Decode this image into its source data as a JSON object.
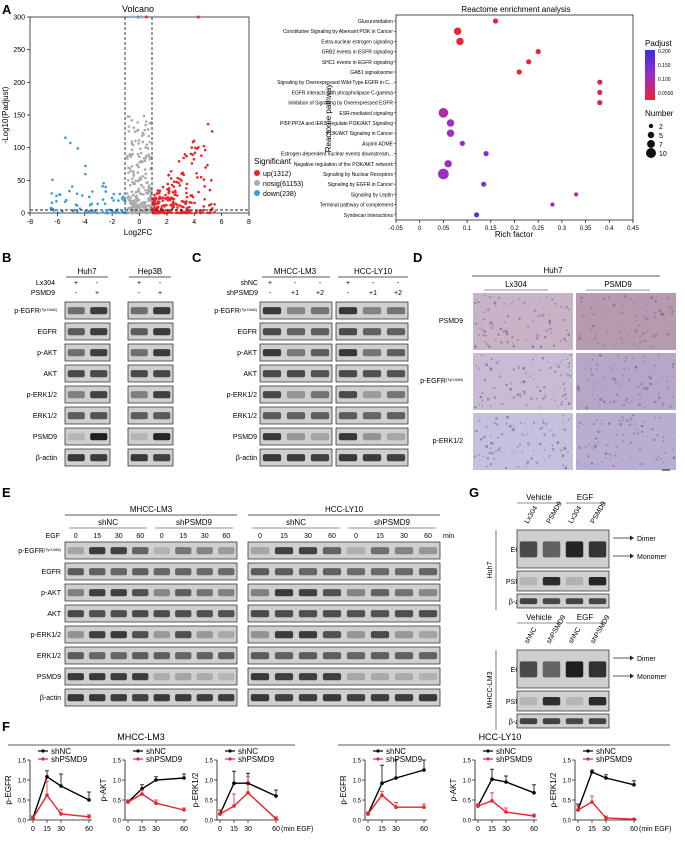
{
  "panels": {
    "A": "A",
    "B": "B",
    "C": "C",
    "D": "D",
    "E": "E",
    "F": "F",
    "G": "G"
  },
  "volcano": {
    "title": "Volcano",
    "xlabel": "Log2FC",
    "ylabel": "-Log10(Padjust)",
    "xticks": [
      "-8",
      "-6",
      "-4",
      "-2",
      "0",
      "2",
      "4",
      "6",
      "8"
    ],
    "yticks": [
      "0",
      "50",
      "100",
      "150",
      "200",
      "250",
      "300"
    ],
    "legend_title": "Significant",
    "legend": [
      {
        "label": "up(1312)",
        "color": "#e8252c"
      },
      {
        "label": "nosig(61153)",
        "color": "#aaaaaa"
      },
      {
        "label": "down(238)",
        "color": "#3b9ad9"
      }
    ]
  },
  "reactome": {
    "title": "Reactome enrichment analysis",
    "xlabel": "Rich factor",
    "ylabel": "Reactome pathway",
    "xticks": [
      "-0.05",
      "0",
      "0.05",
      "0.1",
      "0.15",
      "0.2",
      "0.25",
      "0.3",
      "0.35",
      "0.4",
      "0.45"
    ],
    "padjust_title": "Padjust",
    "padjust_ticks": [
      "0.200",
      "0.150",
      "0.100",
      "0.0500"
    ],
    "number_title": "Number",
    "number_ticks": [
      "2",
      "5",
      "7",
      "10"
    ],
    "pathways": [
      "Glucuronidation",
      "Constitutive Signaling by Aberrant PI3K in Cancer",
      "Extra-nuclear estrogen signaling",
      "GRB2 events in EGFR signaling",
      "SHC1 events in EGFR signaling",
      "GAB1 signalosome",
      "Signaling by Overexpressed Wild-Type EGFR in C...",
      "EGFR interacts with phospholipase C-gamma",
      "Inhibition of Signaling by Overexpressed EGFR",
      "ESR-mediated signaling",
      "PI5P,PP2A and IER3 Regulate PI3K/AKT Signaling",
      "PI3K/AKT Signaling in Cancer",
      "Aspirin ADME",
      "Estrogen-dependent nuclear events downstream...",
      "Negative regulation of the PI3K/AKT network",
      "Signaling by Nuclear Receptors",
      "Signaling by EGFR in Cancer",
      "Signaling by Leptin",
      "Terminal pathway of complement",
      "Syndecan interactions"
    ]
  },
  "blot_b": {
    "lines": [
      "Huh7",
      "Hep3B"
    ],
    "cond": [
      {
        "label": "Lx304",
        "vals": [
          "+",
          "-",
          "+",
          "-"
        ]
      },
      {
        "label": "PSMD9",
        "vals": [
          "-",
          "+",
          "-",
          "+"
        ]
      }
    ],
    "rows": [
      "p-EGFR(Tyr1068)",
      "EGFR",
      "p-AKT",
      "AKT",
      "p-ERK1/2",
      "ERK1/2",
      "PSMD9",
      "β-actin"
    ]
  },
  "blot_c": {
    "lines": [
      "MHCC-LM3",
      "HCC-LY10"
    ],
    "cond": [
      {
        "label": "shNC",
        "vals": [
          "+",
          "-",
          "-",
          "+",
          "-",
          "-"
        ]
      },
      {
        "label": "shPSMD9",
        "vals": [
          "-",
          "+1",
          "+2",
          "-",
          "+1",
          "+2"
        ]
      }
    ],
    "rows": [
      "p-EGFR(Tyr1068)",
      "EGFR",
      "p-AKT",
      "AKT",
      "p-ERK1/2",
      "ERK1/2",
      "PSMD9",
      "β-actin"
    ]
  },
  "ihc_d": {
    "line": "Huh7",
    "cols": [
      "Lx304",
      "PSMD9"
    ],
    "rows": [
      "PSMD9",
      "p-EGFR(Tyr1068)",
      "p-ERK1/2"
    ]
  },
  "blot_e": {
    "lines": [
      "MHCC-LM3",
      "HCC-LY10"
    ],
    "groups": [
      "shNC",
      "shPSMD9"
    ],
    "egf_label": "EGF",
    "times": [
      "0",
      "15",
      "30",
      "60"
    ],
    "unit": "min",
    "rows": [
      "p-EGFR(Tyr1068)",
      "EGFR",
      "p-AKT",
      "AKT",
      "p-ERK1/2",
      "ERK1/2",
      "PSMD9",
      "β-actin"
    ]
  },
  "blot_g": {
    "top": {
      "line": "Huh7",
      "treat": [
        "Vehicle",
        "EGF"
      ],
      "lanes": [
        "Lx304",
        "PSMD9",
        "Lx304",
        "PSMD9"
      ],
      "rows": [
        "EGFR",
        "PSMD9",
        "β-actin"
      ]
    },
    "bottom": {
      "line": "MHCC-LM3",
      "treat": [
        "Vehicle",
        "EGF"
      ],
      "lanes": [
        "shNC",
        "shPSMD9",
        "shNC",
        "shPSMD9"
      ],
      "rows": [
        "EGFR",
        "PSMD9",
        "β-actin"
      ]
    },
    "dimer": "Dimer",
    "monomer": "Monomer"
  },
  "chart_data": [
    {
      "type": "line",
      "cell_line": "MHCC-LM3",
      "ylabel": "p-EGFR",
      "xlabel": "",
      "x": [
        0,
        15,
        30,
        60
      ],
      "ylim": [
        0,
        1.5
      ],
      "series": [
        {
          "name": "shNC",
          "color": "#000000",
          "values": [
            0.05,
            1.08,
            0.85,
            0.5
          ],
          "err": [
            0.05,
            0.15,
            0.3,
            0.2
          ]
        },
        {
          "name": "shPSMD9",
          "color": "#e8252c",
          "values": [
            0.05,
            0.62,
            0.15,
            0.08
          ],
          "err": [
            0.05,
            0.35,
            0.12,
            0.05
          ]
        }
      ]
    },
    {
      "type": "line",
      "cell_line": "MHCC-LM3",
      "ylabel": "p-AKT",
      "xlabel": "",
      "x": [
        0,
        15,
        30,
        60
      ],
      "ylim": [
        0,
        1.5
      ],
      "series": [
        {
          "name": "shNC",
          "color": "#000000",
          "values": [
            0.45,
            0.78,
            1.0,
            1.05
          ],
          "err": [
            0.05,
            0.1,
            0.08,
            0.1
          ]
        },
        {
          "name": "shPSMD9",
          "color": "#e8252c",
          "values": [
            0.45,
            0.65,
            0.42,
            0.25
          ],
          "err": [
            0.05,
            0.1,
            0.08,
            0.05
          ]
        }
      ]
    },
    {
      "type": "line",
      "cell_line": "MHCC-LM3",
      "ylabel": "p-ERK1/2",
      "xlabel": "(min EGF)",
      "x": [
        0,
        15,
        30,
        60
      ],
      "ylim": [
        0,
        1.5
      ],
      "series": [
        {
          "name": "shNC",
          "color": "#000000",
          "values": [
            0.15,
            0.92,
            0.92,
            0.6
          ],
          "err": [
            0.1,
            0.3,
            0.25,
            0.15
          ]
        },
        {
          "name": "shPSMD9",
          "color": "#e8252c",
          "values": [
            0.15,
            0.35,
            0.68,
            0.03
          ],
          "err": [
            0.1,
            0.3,
            0.4,
            0.05
          ]
        }
      ]
    },
    {
      "type": "line",
      "cell_line": "HCC-LY10",
      "ylabel": "p-EGFR",
      "xlabel": "",
      "x": [
        0,
        15,
        30,
        60
      ],
      "ylim": [
        0,
        1.5
      ],
      "series": [
        {
          "name": "shNC",
          "color": "#000000",
          "values": [
            0.15,
            0.92,
            1.05,
            1.25
          ],
          "err": [
            0.05,
            0.45,
            0.45,
            0.3
          ]
        },
        {
          "name": "shPSMD9",
          "color": "#e8252c",
          "values": [
            0.15,
            0.62,
            0.32,
            0.32
          ],
          "err": [
            0.05,
            0.1,
            0.12,
            0.08
          ]
        }
      ]
    },
    {
      "type": "line",
      "cell_line": "HCC-LY10",
      "ylabel": "p-AKT",
      "xlabel": "",
      "x": [
        0,
        15,
        30,
        60
      ],
      "ylim": [
        0,
        1.5
      ],
      "series": [
        {
          "name": "shNC",
          "color": "#000000",
          "values": [
            0.35,
            1.02,
            0.95,
            0.68
          ],
          "err": [
            0.05,
            0.25,
            0.15,
            0.2
          ]
        },
        {
          "name": "shPSMD9",
          "color": "#e8252c",
          "values": [
            0.35,
            0.48,
            0.2,
            0.1
          ],
          "err": [
            0.05,
            0.2,
            0.1,
            0.05
          ]
        }
      ]
    },
    {
      "type": "line",
      "cell_line": "HCC-LY10",
      "ylabel": "p-ERK1/2",
      "xlabel": "(min EGF)",
      "x": [
        0,
        15,
        30,
        60
      ],
      "ylim": [
        0,
        1.5
      ],
      "series": [
        {
          "name": "shNC",
          "color": "#000000",
          "values": [
            0.25,
            1.2,
            1.05,
            0.88
          ],
          "err": [
            0.15,
            0.05,
            0.08,
            0.1
          ]
        },
        {
          "name": "shPSMD9",
          "color": "#e8252c",
          "values": [
            0.25,
            0.45,
            0.05,
            0.02
          ],
          "err": [
            0.1,
            0.15,
            0.05,
            0.02
          ]
        }
      ]
    }
  ]
}
